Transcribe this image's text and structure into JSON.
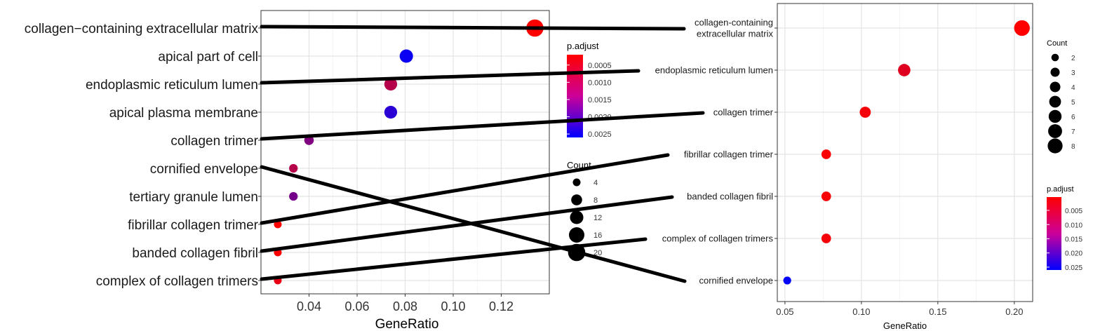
{
  "chart_data": [
    {
      "type": "scatter",
      "name": "left-dotplot",
      "xlabel": "GeneRatio",
      "ylabel": "",
      "xlim": [
        0.02,
        0.14
      ],
      "xticks": [
        0.04,
        0.06,
        0.08,
        0.1,
        0.12
      ],
      "xtick_labels": [
        "0.04",
        "0.06",
        "0.08",
        "0.10",
        "0.12"
      ],
      "grid": true,
      "points": [
        {
          "label": "collagen−containing extracellular matrix",
          "x": 0.134,
          "count": 20,
          "p_adjust": 0.0002
        },
        {
          "label": "apical part of cell",
          "x": 0.0805,
          "count": 12,
          "p_adjust": 0.0025
        },
        {
          "label": "endoplasmic reticulum lumen",
          "x": 0.074,
          "count": 11,
          "p_adjust": 0.0009
        },
        {
          "label": "apical plasma membrane",
          "x": 0.074,
          "count": 11,
          "p_adjust": 0.0022
        },
        {
          "label": "collagen trimer",
          "x": 0.04,
          "count": 6,
          "p_adjust": 0.0014
        },
        {
          "label": "cornified envelope",
          "x": 0.0335,
          "count": 5,
          "p_adjust": 0.0009
        },
        {
          "label": "tertiary granule lumen",
          "x": 0.0335,
          "count": 5,
          "p_adjust": 0.0015
        },
        {
          "label": "fibrillar collagen trimer",
          "x": 0.027,
          "count": 4,
          "p_adjust": 0.0002
        },
        {
          "label": "banded collagen fibril",
          "x": 0.027,
          "count": 4,
          "p_adjust": 0.0002
        },
        {
          "label": "complex of collagen trimers",
          "x": 0.027,
          "count": 4,
          "p_adjust": 0.0004
        }
      ],
      "legend_color": {
        "title": "p.adjust",
        "range": [
          0.0002,
          0.0026
        ],
        "ticks": [
          0.0005,
          0.001,
          0.0015,
          0.002,
          0.0025
        ],
        "tick_labels": [
          "0.0005",
          "0.0010",
          "0.0015",
          "0.0020",
          "0.0025"
        ],
        "low_color": "#ff0000",
        "high_color": "#0000ff"
      },
      "legend_size": {
        "title": "Count",
        "values": [
          4,
          8,
          12,
          16,
          20
        ],
        "labels": [
          "4",
          "8",
          "12",
          "16",
          "20"
        ]
      }
    },
    {
      "type": "scatter",
      "name": "right-dotplot",
      "xlabel": "GeneRatio",
      "ylabel": "",
      "xlim": [
        0.045,
        0.212
      ],
      "xticks": [
        0.05,
        0.1,
        0.15,
        0.2
      ],
      "xtick_labels": [
        "0.05",
        "0.10",
        "0.15",
        "0.20"
      ],
      "grid": true,
      "points": [
        {
          "label_lines": [
            "collagen-containing",
            "extracellular matrix"
          ],
          "x": 0.205,
          "count": 8,
          "p_adjust": 0.0003
        },
        {
          "label_lines": [
            "endoplasmic reticulum lumen"
          ],
          "x": 0.128,
          "count": 5,
          "p_adjust": 0.0035
        },
        {
          "label_lines": [
            "collagen trimer"
          ],
          "x": 0.1025,
          "count": 4,
          "p_adjust": 0.0012
        },
        {
          "label_lines": [
            "fibrillar collagen trimer"
          ],
          "x": 0.077,
          "count": 3,
          "p_adjust": 0.0008
        },
        {
          "label_lines": [
            "banded collagen fibril"
          ],
          "x": 0.077,
          "count": 3,
          "p_adjust": 0.0008
        },
        {
          "label_lines": [
            "complex of collagen trimers"
          ],
          "x": 0.077,
          "count": 3,
          "p_adjust": 0.0012
        },
        {
          "label_lines": [
            "cornified envelope"
          ],
          "x": 0.0515,
          "count": 2,
          "p_adjust": 0.026
        }
      ],
      "legend_size": {
        "title": "Count",
        "values": [
          2,
          3,
          4,
          5,
          6,
          7,
          8
        ],
        "labels": [
          "2",
          "3",
          "4",
          "5",
          "6",
          "7",
          "8"
        ]
      },
      "legend_color": {
        "title": "p.adjust",
        "range": [
          0.0003,
          0.026
        ],
        "ticks": [
          0.005,
          0.01,
          0.015,
          0.02,
          0.025
        ],
        "tick_labels": [
          "0.005",
          "0.010",
          "0.015",
          "0.020",
          "0.025"
        ],
        "low_color": "#ff0000",
        "high_color": "#0000ff"
      }
    }
  ],
  "connections": [
    {
      "from": "collagen−containing extracellular matrix",
      "to": "collagen-containing extracellular matrix"
    },
    {
      "from": "endoplasmic reticulum lumen",
      "to": "endoplasmic reticulum lumen"
    },
    {
      "from": "collagen trimer",
      "to": "collagen trimer"
    },
    {
      "from": "cornified envelope",
      "to": "cornified envelope"
    },
    {
      "from": "fibrillar collagen trimer",
      "to": "fibrillar collagen trimer"
    },
    {
      "from": "banded collagen fibril",
      "to": "banded collagen fibril"
    },
    {
      "from": "complex of collagen trimers",
      "to": "complex of collagen trimers"
    }
  ]
}
